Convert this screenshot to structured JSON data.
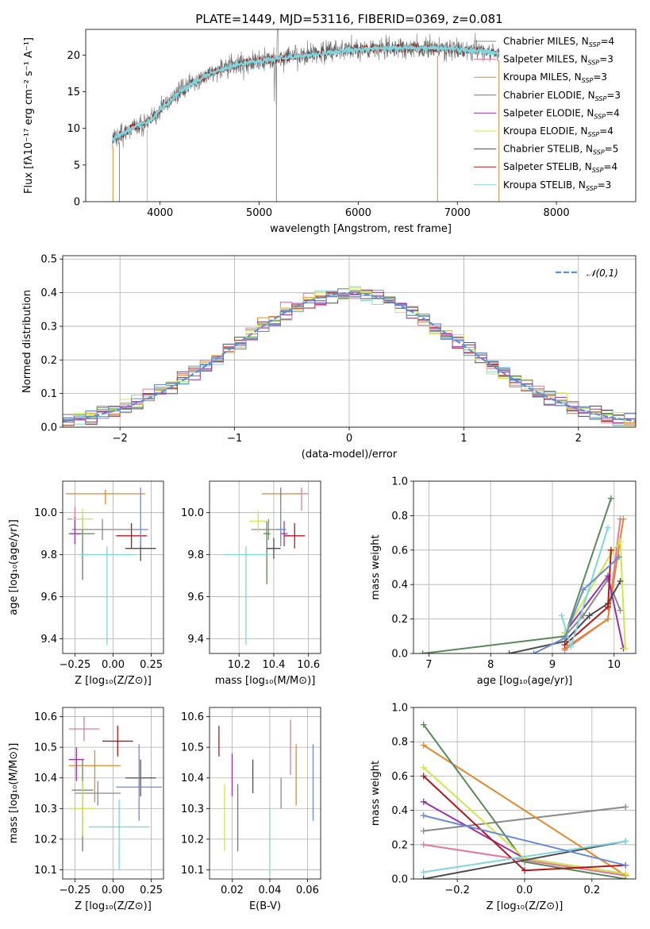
{
  "colors": {
    "Chabrier MILES": "#888888",
    "Salpeter MILES": "#e07a9c",
    "Kroupa MILES": "#e08a2c",
    "Chabrier ELODIE": "#5a8a5a",
    "Salpeter ELODIE": "#9932a8",
    "Kroupa ELODIE": "#cde84a",
    "Chabrier STELIB": "#4d4d4d",
    "Salpeter STELIB": "#b01818",
    "Kroupa STELIB": "#7fd6dc",
    "extra_blue": "#6a8ad6",
    "normal_dash": "#5b8fd6"
  },
  "chart_data": [
    {
      "id": "spectrum",
      "type": "line",
      "title": "PLATE=1449, MJD=53116, FIBERID=0369, z=0.081",
      "xlabel": "wavelength [Angstrom, rest frame]",
      "ylabel": "Flux [fλ10⁻¹⁷ erg cm⁻² s⁻¹ A⁻¹]",
      "xlim": [
        3250,
        8800
      ],
      "ylim": [
        0,
        23.5
      ],
      "xticks": [
        4000,
        5000,
        6000,
        7000,
        8000
      ],
      "yticks": [
        0,
        5,
        10,
        15,
        20
      ],
      "grid": false,
      "legend_position": "right",
      "legend": [
        {
          "label": "Chabrier MILES, N",
          "sub": "SSP",
          "suffix": "=4"
        },
        {
          "label": "Salpeter MILES, N",
          "sub": "SSP",
          "suffix": "=3"
        },
        {
          "label": "Kroupa MILES, N",
          "sub": "SSP",
          "suffix": "=3"
        },
        {
          "label": "Chabrier ELODIE, N",
          "sub": "SSP",
          "suffix": "=3"
        },
        {
          "label": "Salpeter ELODIE, N",
          "sub": "SSP",
          "suffix": "=4"
        },
        {
          "label": "Kroupa ELODIE, N",
          "sub": "SSP",
          "suffix": "=4"
        },
        {
          "label": "Chabrier STELIB, N",
          "sub": "SSP",
          "suffix": "=5"
        },
        {
          "label": "Salpeter STELIB, N",
          "sub": "SSP",
          "suffix": "=4"
        },
        {
          "label": "Kroupa STELIB, N",
          "sub": "SSP",
          "suffix": "=3"
        }
      ],
      "continuum": [
        [
          3520,
          8.5
        ],
        [
          3700,
          10
        ],
        [
          3900,
          11
        ],
        [
          4000,
          12.5
        ],
        [
          4200,
          15
        ],
        [
          4500,
          17.5
        ],
        [
          4800,
          18.8
        ],
        [
          5000,
          19.2
        ],
        [
          5400,
          19.8
        ],
        [
          5800,
          20.5
        ],
        [
          6000,
          20.8
        ],
        [
          6400,
          21
        ],
        [
          6800,
          20.9
        ],
        [
          7000,
          20.8
        ],
        [
          7200,
          20.6
        ],
        [
          7420,
          20.3
        ]
      ]
    },
    {
      "id": "residuals",
      "type": "step",
      "xlabel": "(data-model)/error",
      "ylabel": "Normed distribution",
      "xlim": [
        -2.5,
        2.5
      ],
      "ylim": [
        0,
        0.51
      ],
      "xticks": [
        -2,
        -1,
        0,
        1,
        2
      ],
      "yticks": [
        0.0,
        0.1,
        0.2,
        0.3,
        0.4,
        0.5
      ],
      "grid": true,
      "legend_position": "top-right",
      "legend": [
        {
          "label": "𝒩(0,1)",
          "style": "dashed"
        }
      ],
      "bin_width": 0.1,
      "bin_start": -2.5
    },
    {
      "id": "age_vs_Z",
      "type": "errorbar",
      "xlabel": "Z [log₁₀(Z/Z⊙)]",
      "ylabel": "age  [log₁₀(age/yr)]",
      "xlim": [
        -0.33,
        0.33
      ],
      "ylim": [
        9.33,
        10.15
      ],
      "xticks": [
        -0.25,
        0.0,
        0.25
      ],
      "xticklabels": [
        "−0.25",
        "0.00",
        "0.25"
      ],
      "yticks": [
        9.4,
        9.6,
        9.8,
        10.0
      ],
      "grid": true,
      "points": [
        {
          "model": "Chabrier MILES",
          "x": -0.07,
          "xerr": 0.2,
          "y": 9.92,
          "yerr": [
            0.05,
            0.05
          ]
        },
        {
          "model": "Salpeter MILES",
          "x": -0.25,
          "xerr": 0.05,
          "y": 9.97,
          "yerr": [
            0.06,
            0.06
          ]
        },
        {
          "model": "Kroupa MILES",
          "x": -0.05,
          "xerr": 0.26,
          "y": 10.09,
          "yerr": [
            0.05,
            0.02
          ]
        },
        {
          "model": "Chabrier ELODIE",
          "x": -0.2,
          "xerr": 0.08,
          "y": 9.9,
          "yerr": [
            0.22,
            0.08
          ]
        },
        {
          "model": "Salpeter ELODIE",
          "x": -0.25,
          "xerr": 0.04,
          "y": 9.9,
          "yerr": [
            0.05,
            0.08
          ]
        },
        {
          "model": "Kroupa ELODIE",
          "x": -0.2,
          "xerr": 0.07,
          "y": 9.97,
          "yerr": [
            0.05,
            0.05
          ]
        },
        {
          "model": "Chabrier STELIB",
          "x": 0.18,
          "xerr": 0.1,
          "y": 9.83,
          "yerr": [
            0.06,
            0.06
          ]
        },
        {
          "model": "Salpeter STELIB",
          "x": 0.12,
          "xerr": 0.1,
          "y": 9.89,
          "yerr": [
            0.06,
            0.06
          ]
        },
        {
          "model": "Kroupa STELIB",
          "x": -0.04,
          "xerr": 0.18,
          "y": 9.8,
          "yerr": [
            0.43,
            0.04
          ]
        },
        {
          "model": "extra_blue",
          "x": 0.18,
          "xerr": 0.05,
          "y": 9.92,
          "yerr": [
            0.08,
            0.2
          ]
        }
      ]
    },
    {
      "id": "age_vs_mass",
      "type": "errorbar",
      "xlabel": "mass [log₁₀(M/M⊙)]",
      "xlim": [
        10.03,
        10.67
      ],
      "ylim": [
        9.33,
        10.15
      ],
      "xticks": [
        10.2,
        10.4,
        10.6
      ],
      "yticks": [
        9.4,
        9.6,
        9.8,
        10.0
      ],
      "grid": true,
      "points": [
        {
          "model": "Chabrier MILES",
          "x": 10.37,
          "xerr": 0.1,
          "y": 9.92,
          "yerr": [
            0.05,
            0.05
          ]
        },
        {
          "model": "Salpeter MILES",
          "x": 10.56,
          "xerr": 0.04,
          "y": 10.09,
          "yerr": [
            0.08,
            0.03
          ]
        },
        {
          "model": "Kroupa MILES",
          "x": 10.44,
          "xerr": 0.11,
          "y": 10.09,
          "yerr": [
            0.05,
            0.02
          ]
        },
        {
          "model": "Chabrier ELODIE",
          "x": 10.36,
          "xerr": 0.02,
          "y": 9.9,
          "yerr": [
            0.24,
            0.06
          ]
        },
        {
          "model": "Salpeter ELODIE",
          "x": 10.46,
          "xerr": 0.02,
          "y": 9.9,
          "yerr": [
            0.06,
            0.06
          ]
        },
        {
          "model": "Kroupa ELODIE",
          "x": 10.31,
          "xerr": 0.05,
          "y": 9.96,
          "yerr": [
            0.05,
            0.05
          ]
        },
        {
          "model": "Chabrier STELIB",
          "x": 10.4,
          "xerr": 0.04,
          "y": 9.83,
          "yerr": [
            0.05,
            0.05
          ]
        },
        {
          "model": "Salpeter STELIB",
          "x": 10.52,
          "xerr": 0.06,
          "y": 9.89,
          "yerr": [
            0.06,
            0.06
          ]
        },
        {
          "model": "Kroupa STELIB",
          "x": 10.24,
          "xerr": 0.13,
          "y": 9.8,
          "yerr": [
            0.43,
            0.04
          ]
        },
        {
          "model": "extra_blue",
          "x": 10.44,
          "xerr": 0.03,
          "y": 9.92,
          "yerr": [
            0.08,
            0.2
          ]
        }
      ]
    },
    {
      "id": "weight_vs_age",
      "type": "line",
      "xlabel": "age  [log₁₀(age/yr)]",
      "ylabel": "mass weight",
      "xlim": [
        6.75,
        10.35
      ],
      "ylim": [
        0,
        1.0
      ],
      "xticks": [
        7,
        8,
        9,
        10
      ],
      "yticks": [
        0.0,
        0.2,
        0.4,
        0.6,
        0.8,
        1.0
      ],
      "grid": true,
      "series": [
        {
          "model": "Chabrier MILES",
          "x": [
            9.2,
            9.5,
            9.9,
            10.1
          ],
          "y": [
            0.1,
            0.22,
            0.43,
            0.25
          ]
        },
        {
          "model": "Salpeter MILES",
          "x": [
            9.2,
            9.9,
            10.1
          ],
          "y": [
            0.02,
            0.2,
            0.78
          ]
        },
        {
          "model": "Kroupa MILES",
          "x": [
            9.2,
            9.9,
            10.15
          ],
          "y": [
            0.03,
            0.2,
            0.78
          ]
        },
        {
          "model": "Chabrier ELODIE",
          "x": [
            6.9,
            9.2,
            9.95
          ],
          "y": [
            0.0,
            0.1,
            0.9
          ]
        },
        {
          "model": "Salpeter ELODIE",
          "x": [
            9.2,
            9.9,
            10.15
          ],
          "y": [
            0.12,
            0.45,
            0.03
          ]
        },
        {
          "model": "Kroupa ELODIE",
          "x": [
            9.2,
            9.95,
            10.1,
            10.18
          ],
          "y": [
            0.12,
            0.58,
            0.65,
            0.03
          ]
        },
        {
          "model": "Chabrier STELIB",
          "x": [
            8.3,
            9.2,
            9.6,
            9.9,
            10.1
          ],
          "y": [
            0.0,
            0.07,
            0.22,
            0.29,
            0.42
          ]
        },
        {
          "model": "Salpeter STELIB",
          "x": [
            9.2,
            9.9,
            9.95
          ],
          "y": [
            0.05,
            0.27,
            0.6
          ]
        },
        {
          "model": "Kroupa STELIB",
          "x": [
            9.15,
            9.3,
            9.9
          ],
          "y": [
            0.22,
            0.04,
            0.73
          ]
        },
        {
          "model": "extra_blue",
          "x": [
            8.7,
            9.2,
            9.5,
            10.08
          ],
          "y": [
            0.0,
            0.09,
            0.37,
            0.56
          ]
        }
      ]
    },
    {
      "id": "mass_vs_Z",
      "type": "errorbar",
      "xlabel": "Z [log₁₀(Z/Z⊙)]",
      "ylabel": "mass [log₁₀(M/M⊙)]",
      "xlim": [
        -0.33,
        0.33
      ],
      "ylim": [
        10.07,
        10.63
      ],
      "xticks": [
        -0.25,
        0.0,
        0.25
      ],
      "xticklabels": [
        "−0.25",
        "0.00",
        "0.25"
      ],
      "yticks": [
        10.1,
        10.2,
        10.3,
        10.4,
        10.5,
        10.6
      ],
      "grid": true,
      "points": [
        {
          "model": "Chabrier MILES",
          "x": -0.1,
          "xerr": 0.15,
          "y": 10.35,
          "yerr": [
            0.04,
            0.04
          ]
        },
        {
          "model": "Salpeter MILES",
          "x": -0.19,
          "xerr": 0.1,
          "y": 10.56,
          "yerr": [
            0.04,
            0.04
          ]
        },
        {
          "model": "Kroupa MILES",
          "x": -0.12,
          "xerr": 0.17,
          "y": 10.44,
          "yerr": [
            0.12,
            0.05
          ]
        },
        {
          "model": "Chabrier ELODIE",
          "x": -0.2,
          "xerr": 0.07,
          "y": 10.36,
          "yerr": [
            0.2,
            0.1
          ]
        },
        {
          "model": "Salpeter ELODIE",
          "x": -0.24,
          "xerr": 0.05,
          "y": 10.46,
          "yerr": [
            0.07,
            0.04
          ]
        },
        {
          "model": "Kroupa ELODIE",
          "x": -0.2,
          "xerr": 0.08,
          "y": 10.3,
          "yerr": [
            0.09,
            0.09
          ]
        },
        {
          "model": "Chabrier STELIB",
          "x": 0.18,
          "xerr": 0.1,
          "y": 10.4,
          "yerr": [
            0.06,
            0.06
          ]
        },
        {
          "model": "Salpeter STELIB",
          "x": 0.03,
          "xerr": 0.1,
          "y": 10.52,
          "yerr": [
            0.05,
            0.05
          ]
        },
        {
          "model": "Kroupa STELIB",
          "x": 0.04,
          "xerr": 0.2,
          "y": 10.24,
          "yerr": [
            0.14,
            0.09
          ]
        },
        {
          "model": "extra_blue",
          "x": 0.17,
          "xerr": 0.15,
          "y": 10.37,
          "yerr": [
            0.11,
            0.14
          ]
        }
      ]
    },
    {
      "id": "mass_vs_ebv",
      "type": "errorbar",
      "xlabel": "E(B-V)",
      "xlim": [
        0.008,
        0.067
      ],
      "ylim": [
        10.07,
        10.63
      ],
      "xticks": [
        0.02,
        0.04,
        0.06
      ],
      "xticklabels": [
        "0.02",
        "0.04",
        "0.06"
      ],
      "yticks": [
        10.1,
        10.2,
        10.3,
        10.4,
        10.5,
        10.6
      ],
      "grid": true,
      "points": [
        {
          "model": "Chabrier MILES",
          "x": 0.046,
          "xerr": 0,
          "y": 10.35,
          "yerr": [
            0.05,
            0.05
          ]
        },
        {
          "model": "Salpeter MILES",
          "x": 0.051,
          "xerr": 0,
          "y": 10.51,
          "yerr": [
            0.1,
            0.08
          ]
        },
        {
          "model": "Kroupa MILES",
          "x": 0.054,
          "xerr": 0,
          "y": 10.41,
          "yerr": [
            0.1,
            0.1
          ]
        },
        {
          "model": "Chabrier ELODIE",
          "x": 0.023,
          "xerr": 0,
          "y": 10.27,
          "yerr": [
            0.11,
            0.11
          ]
        },
        {
          "model": "Salpeter ELODIE",
          "x": 0.02,
          "xerr": 0,
          "y": 10.41,
          "yerr": [
            0.07,
            0.07
          ]
        },
        {
          "model": "Kroupa ELODIE",
          "x": 0.016,
          "xerr": 0,
          "y": 10.27,
          "yerr": [
            0.11,
            0.11
          ]
        },
        {
          "model": "Chabrier STELIB",
          "x": 0.031,
          "xerr": 0,
          "y": 10.4,
          "yerr": [
            0.05,
            0.06
          ]
        },
        {
          "model": "Salpeter STELIB",
          "x": 0.013,
          "xerr": 0,
          "y": 10.52,
          "yerr": [
            0.05,
            0.05
          ]
        },
        {
          "model": "Kroupa STELIB",
          "x": 0.04,
          "xerr": 0,
          "y": 10.2,
          "yerr": [
            0.12,
            0.1
          ]
        },
        {
          "model": "extra_blue",
          "x": 0.063,
          "xerr": 0,
          "y": 10.38,
          "yerr": [
            0.12,
            0.13
          ]
        }
      ]
    },
    {
      "id": "weight_vs_Z",
      "type": "line",
      "xlabel": "Z [log₁₀(Z/Z⊙)]",
      "ylabel": "mass weight",
      "xlim": [
        -0.33,
        0.33
      ],
      "ylim": [
        0,
        1.0
      ],
      "xticks": [
        -0.2,
        0.0,
        0.2
      ],
      "xticklabels": [
        "−0.2",
        "0.0",
        "0.2"
      ],
      "yticks": [
        0.0,
        0.2,
        0.4,
        0.6,
        0.8,
        1.0
      ],
      "grid": true,
      "series": [
        {
          "model": "Chabrier MILES",
          "x": [
            -0.3,
            0.3
          ],
          "y": [
            0.28,
            0.42
          ]
        },
        {
          "model": "Salpeter MILES",
          "x": [
            -0.3,
            0.3
          ],
          "y": [
            0.2,
            0.02
          ]
        },
        {
          "model": "Kroupa MILES",
          "x": [
            -0.3,
            0.3
          ],
          "y": [
            0.78,
            0.02
          ]
        },
        {
          "model": "Chabrier ELODIE",
          "x": [
            -0.3,
            0.0,
            0.3
          ],
          "y": [
            0.9,
            0.1,
            0.0
          ]
        },
        {
          "model": "Salpeter ELODIE",
          "x": [
            -0.3,
            0.0,
            0.3
          ],
          "y": [
            0.45,
            0.12,
            0.03
          ]
        },
        {
          "model": "Kroupa ELODIE",
          "x": [
            -0.3,
            0.0,
            0.3
          ],
          "y": [
            0.65,
            0.12,
            0.03
          ]
        },
        {
          "model": "Chabrier STELIB",
          "x": [
            -0.3,
            0.3
          ],
          "y": [
            0.0,
            0.22
          ]
        },
        {
          "model": "Salpeter STELIB",
          "x": [
            -0.3,
            0.0,
            0.3
          ],
          "y": [
            0.6,
            0.05,
            0.08
          ]
        },
        {
          "model": "Kroupa STELIB",
          "x": [
            -0.3,
            0.3
          ],
          "y": [
            0.04,
            0.22
          ]
        },
        {
          "model": "extra_blue",
          "x": [
            -0.3,
            0.3
          ],
          "y": [
            0.37,
            0.08
          ]
        }
      ]
    }
  ]
}
